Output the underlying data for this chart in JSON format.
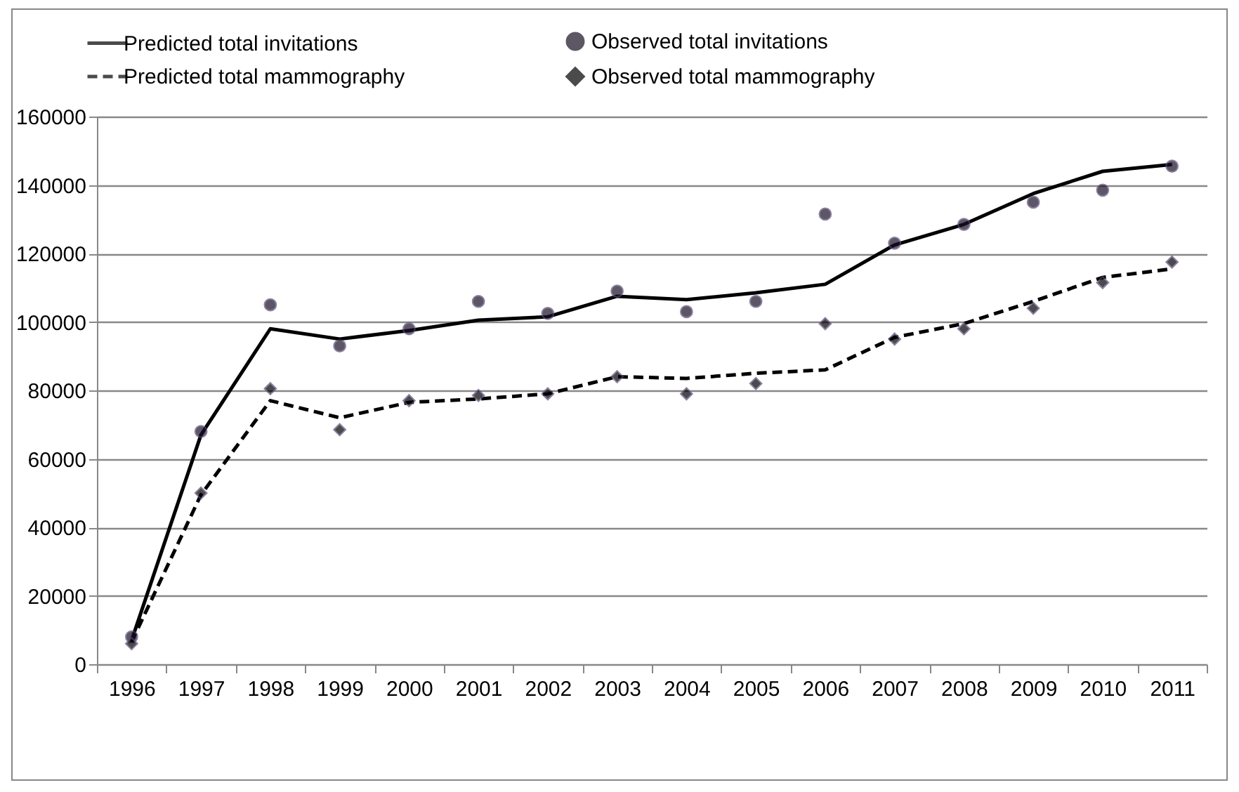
{
  "chart_data": {
    "type": "line",
    "categories": [
      "1996",
      "1997",
      "1998",
      "1999",
      "2000",
      "2001",
      "2002",
      "2003",
      "2004",
      "2005",
      "2006",
      "2007",
      "2008",
      "2009",
      "2010",
      "2011"
    ],
    "series": [
      {
        "name": "Predicted total invitations",
        "type": "line",
        "line_style": "solid",
        "color": "#000000",
        "values": [
          7000,
          67000,
          98000,
          95000,
          97500,
          100500,
          101500,
          107500,
          106500,
          108500,
          111000,
          122500,
          128500,
          137500,
          144000,
          146000
        ]
      },
      {
        "name": "Observed total invitations",
        "type": "scatter",
        "marker": "circle",
        "color": "#1a1025",
        "values": [
          8000,
          68000,
          105000,
          93000,
          98000,
          106000,
          102500,
          109000,
          103000,
          106000,
          131500,
          123000,
          128500,
          135000,
          138500,
          145500
        ]
      },
      {
        "name": "Predicted total mammography",
        "type": "line",
        "line_style": "dashed",
        "color": "#000000",
        "values": [
          6500,
          49500,
          77000,
          72000,
          76500,
          77500,
          79000,
          84000,
          83500,
          85000,
          86000,
          95500,
          99500,
          106000,
          113000,
          115500
        ]
      },
      {
        "name": "Observed total mammography",
        "type": "scatter",
        "marker": "diamond",
        "color": "#000000",
        "values": [
          6000,
          50000,
          80500,
          68500,
          77000,
          78500,
          79000,
          84000,
          79000,
          82000,
          99500,
          95000,
          98000,
          104000,
          111500,
          117500
        ]
      }
    ],
    "ylim": [
      0,
      160000
    ],
    "yticks": [
      0,
      20000,
      40000,
      60000,
      80000,
      100000,
      120000,
      140000,
      160000
    ],
    "grid": "y",
    "legend": "top"
  }
}
